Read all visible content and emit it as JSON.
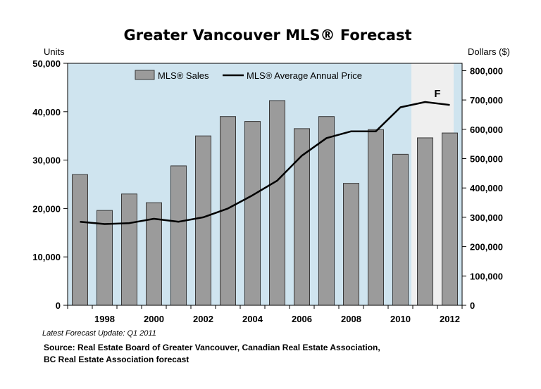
{
  "chart_data": {
    "type": "bar+line",
    "title": "Greater Vancouver MLS® Forecast",
    "y_left_unit": "Units",
    "y_right_unit": "Dollars ($)",
    "y_left_lim": [
      0,
      50000
    ],
    "y_right_lim": [
      0,
      825000
    ],
    "y_left_ticks": [
      "0",
      "10,000",
      "20,000",
      "30,000",
      "40,000",
      "50,000"
    ],
    "y_right_ticks": [
      "0",
      "100,000",
      "200,000",
      "300,000",
      "400,000",
      "500,000",
      "600,000",
      "700,000",
      "800,000"
    ],
    "x_tick_labels": [
      "1998",
      "2000",
      "2002",
      "2004",
      "2006",
      "2008",
      "2010",
      "2012"
    ],
    "years": [
      1997,
      1998,
      1999,
      2000,
      2001,
      2002,
      2003,
      2004,
      2005,
      2006,
      2007,
      2008,
      2009,
      2010,
      2011,
      2012
    ],
    "series": [
      {
        "name": "MLS® Sales",
        "type": "bar",
        "axis": "left",
        "color": "#9b9b9b",
        "values": [
          27000,
          19600,
          23000,
          21200,
          28800,
          35000,
          39000,
          38000,
          42300,
          36500,
          39000,
          25200,
          36300,
          31200,
          34600,
          35600
        ]
      },
      {
        "name": "MLS® Average Annual Price",
        "type": "line",
        "axis": "right",
        "color": "#000000",
        "values": [
          285000,
          277000,
          280000,
          295000,
          285000,
          300000,
          330000,
          375000,
          425000,
          510000,
          570000,
          593000,
          593000,
          675000,
          693000,
          683000
        ]
      }
    ],
    "forecast_label": "F",
    "forecast_years": [
      2011,
      2012
    ],
    "legend_position": "top-center",
    "grid": false
  },
  "notes": {
    "update": "Latest Forecast Update: Q1 2011",
    "source_line1": "Source: Real Estate Board of Greater Vancouver, Canadian Real Estate Association,",
    "source_line2": "BC Real Estate Association forecast"
  },
  "colors": {
    "plot_bg": "#cfe4ef",
    "forecast_bg": "#efefef",
    "bar_fill": "#9b9b9b",
    "bar_stroke": "#3a3a3a",
    "line": "#000000"
  }
}
